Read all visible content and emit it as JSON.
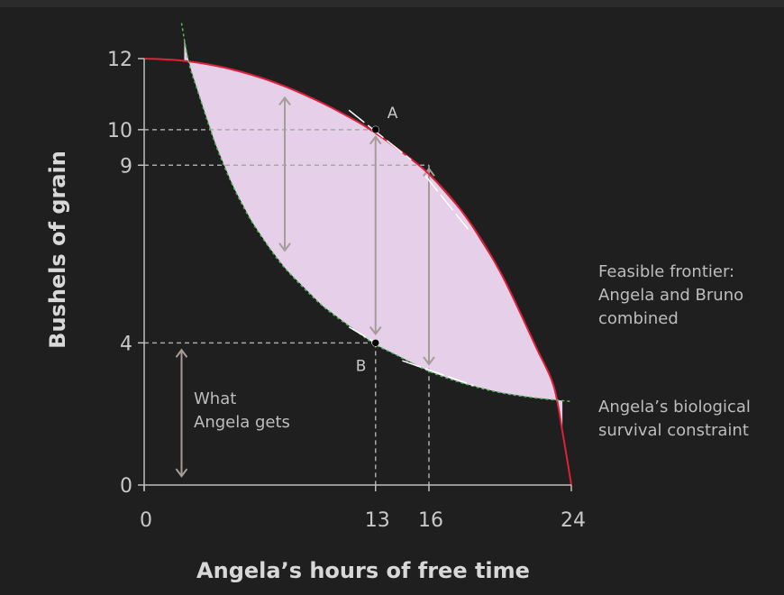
{
  "chart_data": {
    "type": "line",
    "xlabel": "Angela’s hours of free time",
    "ylabel": "Bushels of grain",
    "xlim": [
      0,
      24
    ],
    "ylim": [
      0,
      12
    ],
    "x_ticks": [
      {
        "value": 0,
        "label": "0"
      },
      {
        "value": 13,
        "label": "13"
      },
      {
        "value": 16,
        "label": "16"
      },
      {
        "value": 24,
        "label": "24"
      }
    ],
    "y_ticks": [
      {
        "value": 0,
        "label": "0"
      },
      {
        "value": 4,
        "label": "4"
      },
      {
        "value": 9,
        "label": "9"
      },
      {
        "value": 10,
        "label": "10"
      },
      {
        "value": 12,
        "label": "12"
      }
    ],
    "series": [
      {
        "name": "Feasible frontier: Angela and Bruno combined",
        "label_lines": [
          "Feasible frontier:",
          "Angela and Bruno",
          "combined"
        ],
        "color": "#e0203a",
        "style": "solid",
        "x": [
          0,
          2,
          4,
          6,
          8,
          10,
          12,
          13,
          14,
          16,
          18,
          20,
          22,
          23,
          23.5,
          24
        ],
        "y": [
          12,
          11.95,
          11.8,
          11.55,
          11.2,
          10.75,
          10.22,
          9.9,
          9.55,
          8.75,
          7.6,
          6.0,
          3.9,
          2.8,
          1.5,
          0
        ]
      },
      {
        "name": "Angela’s biological survival constraint",
        "label_lines": [
          "Angela’s biological",
          "survival constraint"
        ],
        "color": "#4fbf5a",
        "style": "dashed",
        "x": [
          2.1,
          2.5,
          3,
          4,
          5,
          6,
          7,
          8,
          10,
          12,
          13,
          14,
          16,
          18,
          20,
          22,
          24
        ],
        "y": [
          13,
          11.9,
          11.1,
          9.6,
          8.4,
          7.45,
          6.7,
          6.05,
          5.05,
          4.3,
          3.95,
          3.7,
          3.2,
          2.85,
          2.6,
          2.45,
          2.35
        ]
      }
    ],
    "feasible_region_fill": "#e6cfe8",
    "points": [
      {
        "name": "A",
        "x": 13,
        "y": 10
      },
      {
        "name": "B",
        "x": 13,
        "y": 4
      }
    ],
    "tangent_segments": [
      {
        "x0": 11.5,
        "y0": 10.55,
        "x1": 15,
        "y1": 9.15
      },
      {
        "x0": 15.8,
        "y0": 8.7,
        "x1": 18.2,
        "y1": 7.2
      },
      {
        "x0": 11.5,
        "y0": 4.45,
        "x1": 13,
        "y1": 4.0
      },
      {
        "x0": 14.5,
        "y0": 3.5,
        "x1": 18.5,
        "y1": 2.8
      }
    ],
    "vertical_arrows": [
      {
        "x": 7.9,
        "y_from": 6.6,
        "y_to": 10.9
      },
      {
        "x": 13,
        "y_from": 4.25,
        "y_to": 9.8
      },
      {
        "x": 16,
        "y_from": 3.4,
        "y_to": 8.9
      },
      {
        "x": 2.1,
        "y_from": 0.25,
        "y_to": 3.8
      }
    ],
    "annotation": {
      "lines": [
        "What",
        "Angela gets"
      ]
    },
    "colors": {
      "background": "#1f1f1f",
      "axis": "#bfbfbf",
      "guide": "#a8a8a8",
      "arrow": "#a59c97",
      "text": "#c8c8c8"
    }
  }
}
